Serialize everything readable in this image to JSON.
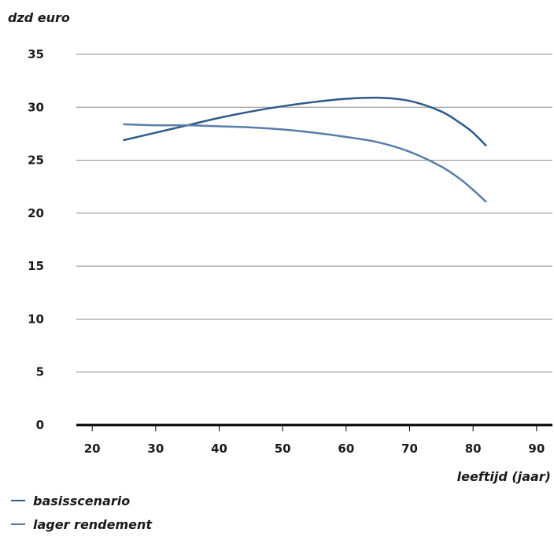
{
  "chart_data": {
    "type": "line",
    "ylabel": "dzd euro",
    "xlabel": "leeftijd (jaar)",
    "xlim": [
      17.5,
      92.5
    ],
    "ylim": [
      0,
      35
    ],
    "xticks": [
      20,
      30,
      40,
      50,
      60,
      70,
      80,
      90
    ],
    "yticks": [
      0,
      5,
      10,
      15,
      20,
      25,
      30,
      35
    ],
    "grid": "horizontal",
    "legend_position": "bottom-left",
    "series": [
      {
        "name": "basisscenario",
        "color": "#2d5b8a",
        "x": [
          25,
          30,
          35,
          40,
          45,
          50,
          55,
          60,
          65,
          70,
          75,
          78,
          80,
          82
        ],
        "y": [
          26.9,
          27.6,
          28.3,
          29.0,
          29.6,
          30.1,
          30.5,
          30.8,
          30.9,
          30.6,
          29.6,
          28.5,
          27.6,
          26.4
        ]
      },
      {
        "name": "lager rendement",
        "color": "#5a7ea8",
        "x": [
          25,
          30,
          35,
          40,
          45,
          50,
          55,
          60,
          65,
          70,
          75,
          78,
          80,
          82
        ],
        "y": [
          28.4,
          28.3,
          28.3,
          28.2,
          28.1,
          27.9,
          27.6,
          27.2,
          26.7,
          25.8,
          24.4,
          23.2,
          22.2,
          21.1
        ]
      }
    ]
  }
}
